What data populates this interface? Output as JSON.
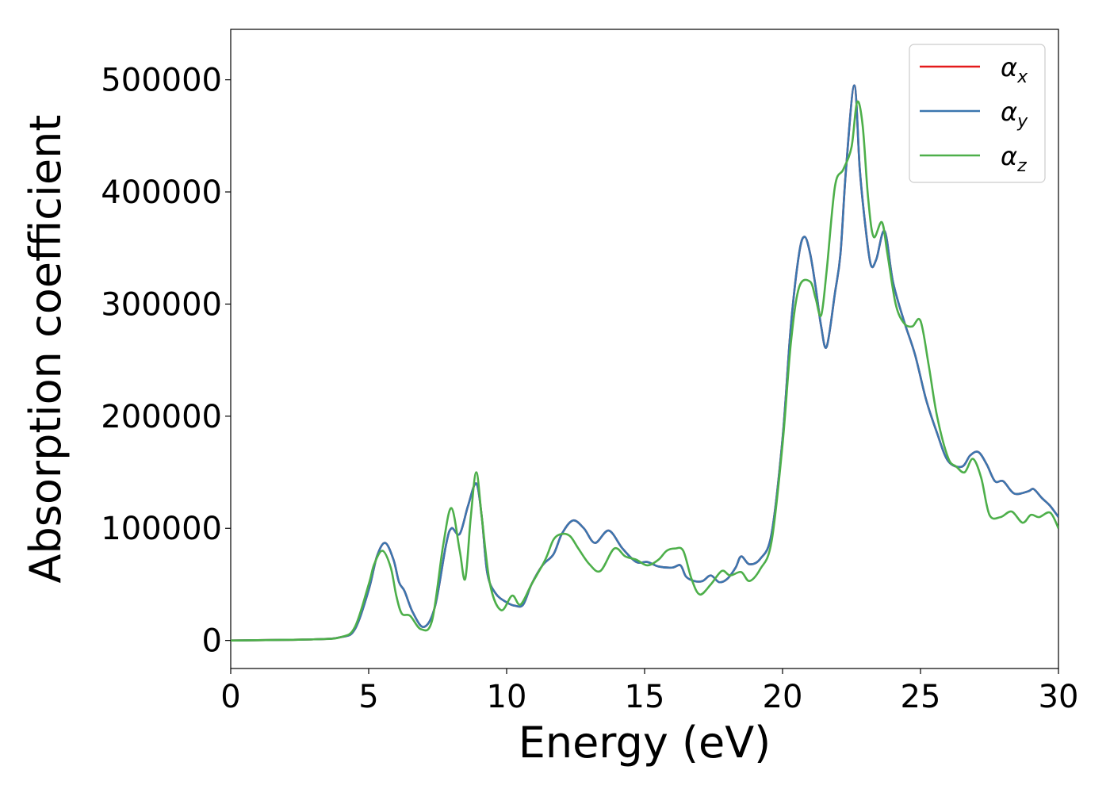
{
  "chart_data": {
    "type": "line",
    "xlabel": "Energy (eV)",
    "ylabel": "Absorption coefficient",
    "xlim": [
      0,
      30
    ],
    "ylim": [
      -25000,
      545000
    ],
    "xticks": [
      0,
      5,
      10,
      15,
      20,
      25,
      30
    ],
    "xtick_labels": [
      "0",
      "5",
      "10",
      "15",
      "20",
      "25",
      "30"
    ],
    "yticks": [
      0,
      100000,
      200000,
      300000,
      400000,
      500000
    ],
    "ytick_labels": [
      "0",
      "100000",
      "200000",
      "300000",
      "400000",
      "500000"
    ],
    "grid": false,
    "legend_position": "top-right",
    "series": [
      {
        "name": "α",
        "subscript": "x",
        "color": "#e41a1c",
        "x": [
          0,
          3,
          4,
          4.5,
          5,
          5.3,
          5.6,
          5.9,
          6.1,
          6.3,
          6.6,
          7,
          7.4,
          7.8,
          8,
          8.3,
          8.6,
          8.9,
          9.1,
          9.3,
          9.6,
          10,
          10.3,
          10.6,
          10.9,
          11.3,
          11.7,
          12,
          12.4,
          12.8,
          13.2,
          13.7,
          14.2,
          14.7,
          15.1,
          15.5,
          16,
          16.3,
          16.5,
          16.8,
          17.1,
          17.4,
          17.7,
          18,
          18.3,
          18.5,
          18.8,
          19.2,
          19.6,
          20,
          20.3,
          20.6,
          20.8,
          21,
          21.2,
          21.4,
          21.6,
          21.9,
          22.1,
          22.3,
          22.6,
          22.8,
          23,
          23.2,
          23.4,
          23.7,
          24,
          24.4,
          24.8,
          25.2,
          25.6,
          26,
          26.5,
          26.8,
          27.1,
          27.4,
          27.7,
          28,
          28.4,
          28.9,
          29.1,
          29.4,
          29.7,
          30
        ],
        "y": [
          0,
          1000,
          3000,
          10000,
          45000,
          75000,
          87000,
          72000,
          52000,
          44000,
          25000,
          12000,
          30000,
          85000,
          100000,
          95000,
          120000,
          140000,
          110000,
          60000,
          42000,
          34000,
          31000,
          32000,
          50000,
          67000,
          77000,
          95000,
          107000,
          100000,
          87000,
          98000,
          82000,
          70000,
          70000,
          66000,
          65000,
          67000,
          57000,
          53000,
          53000,
          58000,
          52000,
          55000,
          65000,
          75000,
          68000,
          73000,
          95000,
          180000,
          280000,
          345000,
          360000,
          345000,
          315000,
          280000,
          262000,
          310000,
          345000,
          420000,
          495000,
          420000,
          370000,
          335000,
          340000,
          365000,
          320000,
          285000,
          255000,
          215000,
          185000,
          160000,
          155000,
          165000,
          168000,
          157000,
          142000,
          142000,
          131000,
          133000,
          135000,
          127000,
          120000,
          110000
        ]
      },
      {
        "name": "α",
        "subscript": "y",
        "color": "#3b76af",
        "x": [
          0,
          3,
          4,
          4.5,
          5,
          5.3,
          5.6,
          5.9,
          6.1,
          6.3,
          6.6,
          7,
          7.4,
          7.8,
          8,
          8.3,
          8.6,
          8.9,
          9.1,
          9.3,
          9.6,
          10,
          10.3,
          10.6,
          10.9,
          11.3,
          11.7,
          12,
          12.4,
          12.8,
          13.2,
          13.7,
          14.2,
          14.7,
          15.1,
          15.5,
          16,
          16.3,
          16.5,
          16.8,
          17.1,
          17.4,
          17.7,
          18,
          18.3,
          18.5,
          18.8,
          19.2,
          19.6,
          20,
          20.3,
          20.6,
          20.8,
          21,
          21.2,
          21.4,
          21.6,
          21.9,
          22.1,
          22.3,
          22.6,
          22.8,
          23,
          23.2,
          23.4,
          23.7,
          24,
          24.4,
          24.8,
          25.2,
          25.6,
          26,
          26.5,
          26.8,
          27.1,
          27.4,
          27.7,
          28,
          28.4,
          28.9,
          29.1,
          29.4,
          29.7,
          30
        ],
        "y": [
          0,
          1000,
          3000,
          10000,
          45000,
          75000,
          87000,
          72000,
          52000,
          44000,
          25000,
          12000,
          30000,
          85000,
          100000,
          95000,
          120000,
          140000,
          110000,
          60000,
          42000,
          34000,
          31000,
          32000,
          50000,
          67000,
          77000,
          95000,
          107000,
          100000,
          87000,
          98000,
          82000,
          70000,
          70000,
          66000,
          65000,
          67000,
          57000,
          53000,
          53000,
          58000,
          52000,
          55000,
          65000,
          75000,
          68000,
          73000,
          95000,
          180000,
          280000,
          345000,
          360000,
          345000,
          315000,
          280000,
          262000,
          310000,
          345000,
          420000,
          495000,
          420000,
          370000,
          335000,
          340000,
          365000,
          320000,
          285000,
          255000,
          215000,
          185000,
          160000,
          155000,
          165000,
          168000,
          157000,
          142000,
          142000,
          131000,
          133000,
          135000,
          127000,
          120000,
          110000
        ]
      },
      {
        "name": "α",
        "subscript": "z",
        "color": "#4daf4a",
        "x": [
          0,
          3,
          4,
          4.5,
          5,
          5.2,
          5.5,
          5.8,
          6,
          6.2,
          6.5,
          6.9,
          7.3,
          7.7,
          8,
          8.3,
          8.5,
          8.7,
          8.9,
          9.1,
          9.4,
          9.8,
          10.2,
          10.5,
          10.9,
          11.4,
          11.7,
          12,
          12.3,
          12.6,
          13,
          13.4,
          13.9,
          14.3,
          14.7,
          15.1,
          15.5,
          15.8,
          16.1,
          16.4,
          16.7,
          17,
          17.4,
          17.8,
          18.1,
          18.5,
          18.8,
          19.2,
          19.6,
          20,
          20.3,
          20.6,
          21,
          21.2,
          21.4,
          21.6,
          21.9,
          22.2,
          22.5,
          22.7,
          22.9,
          23.1,
          23.3,
          23.6,
          23.8,
          24.1,
          24.4,
          24.7,
          25,
          25.3,
          25.6,
          26,
          26.3,
          26.6,
          26.9,
          27.2,
          27.5,
          27.9,
          28.3,
          28.7,
          29,
          29.3,
          29.7,
          30
        ],
        "y": [
          0,
          1000,
          3000,
          12000,
          50000,
          68000,
          80000,
          65000,
          40000,
          24000,
          22000,
          10000,
          18000,
          85000,
          118000,
          80000,
          55000,
          110000,
          150000,
          110000,
          50000,
          27000,
          40000,
          32000,
          50000,
          72000,
          90000,
          95000,
          93000,
          82000,
          68000,
          62000,
          82000,
          75000,
          72000,
          67000,
          72000,
          80000,
          82000,
          80000,
          55000,
          41000,
          50000,
          62000,
          58000,
          61000,
          53000,
          64000,
          88000,
          175000,
          265000,
          315000,
          320000,
          305000,
          290000,
          330000,
          405000,
          420000,
          440000,
          480000,
          460000,
          395000,
          360000,
          373000,
          345000,
          300000,
          283000,
          280000,
          285000,
          245000,
          200000,
          163000,
          155000,
          150000,
          162000,
          145000,
          112000,
          110000,
          115000,
          105000,
          112000,
          110000,
          114000,
          100000
        ]
      }
    ]
  }
}
